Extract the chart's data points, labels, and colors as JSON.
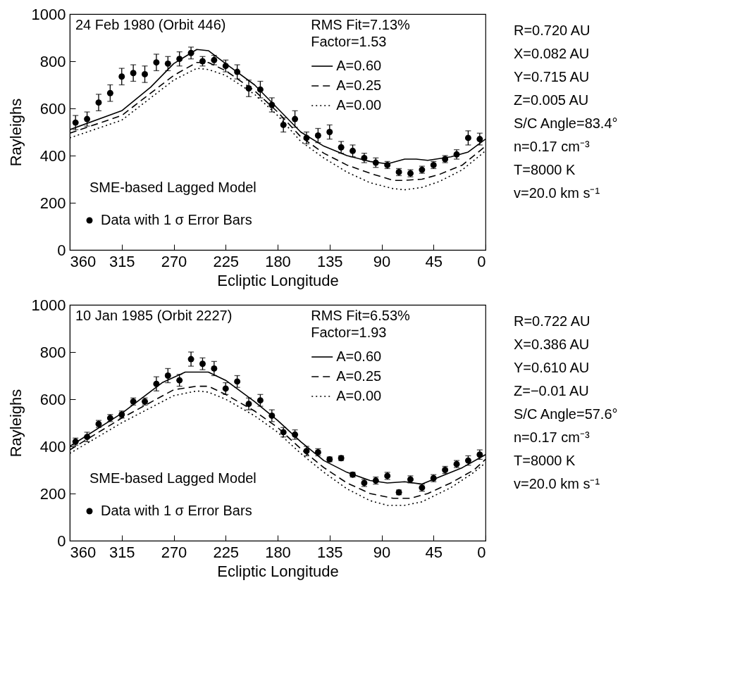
{
  "chart_data": [
    {
      "type": "line",
      "xlabel": "Ecliptic Longitude",
      "ylabel": "Rayleighs",
      "xlim": [
        360,
        0
      ],
      "xticks": [
        360,
        315,
        270,
        225,
        180,
        135,
        90,
        45,
        0
      ],
      "ylim": [
        0,
        1000
      ],
      "yticks": [
        0,
        200,
        400,
        600,
        800,
        1000
      ],
      "grid": false,
      "legend": "left",
      "annotations": [
        "24 Feb 1980 (Orbit 446)",
        "RMS Fit=7.13%",
        "Factor=1.53",
        "SME-based Lagged Model",
        "R=0.720 AU",
        "X=0.082 AU",
        "Y=0.715 AU",
        "Z=0.005 AU",
        "S/C Angle=83.4°",
        "n=0.17 cm⁻³",
        "T=8000 K",
        "v=20.0 km s⁻¹"
      ],
      "series": [
        {
          "name": "A=0.60",
          "type": "line",
          "line_style": "solid",
          "color": "#000000",
          "x": [
            360,
            315,
            290,
            270,
            250,
            240,
            225,
            200,
            180,
            160,
            140,
            120,
            100,
            85,
            70,
            60,
            50,
            30,
            15,
            0
          ],
          "values": [
            510,
            590,
            690,
            790,
            850,
            845,
            790,
            700,
            600,
            500,
            440,
            400,
            375,
            365,
            385,
            385,
            380,
            395,
            415,
            470
          ]
        },
        {
          "name": "A=0.25",
          "type": "line",
          "line_style": "dashed",
          "color": "#000000",
          "x": [
            360,
            315,
            270,
            250,
            240,
            225,
            200,
            180,
            160,
            140,
            120,
            100,
            80,
            70,
            55,
            40,
            20,
            0
          ],
          "values": [
            495,
            570,
            740,
            795,
            795,
            760,
            675,
            585,
            480,
            410,
            360,
            325,
            295,
            295,
            300,
            320,
            360,
            440
          ]
        },
        {
          "name": "A=0.00",
          "type": "line",
          "line_style": "dotted",
          "color": "#000000",
          "x": [
            360,
            315,
            270,
            250,
            240,
            225,
            200,
            180,
            160,
            140,
            120,
            100,
            80,
            70,
            55,
            40,
            20,
            0
          ],
          "values": [
            475,
            550,
            720,
            770,
            765,
            740,
            660,
            570,
            460,
            390,
            330,
            285,
            260,
            255,
            265,
            290,
            340,
            420
          ]
        },
        {
          "name": "Data with 1 σ Error Bars",
          "type": "scatter",
          "marker": "circle",
          "color": "#000000",
          "x": [
            355,
            345,
            335,
            325,
            315,
            305,
            295,
            285,
            275,
            265,
            255,
            245,
            235,
            225,
            215,
            205,
            195,
            185,
            175,
            165,
            155,
            145,
            135,
            125,
            115,
            105,
            95,
            85,
            75,
            65,
            55,
            45,
            35,
            25,
            15,
            5
          ],
          "values": [
            540,
            555,
            625,
            665,
            735,
            750,
            745,
            795,
            790,
            810,
            835,
            800,
            805,
            780,
            755,
            685,
            680,
            615,
            530,
            555,
            475,
            485,
            500,
            435,
            420,
            390,
            370,
            360,
            330,
            325,
            340,
            360,
            385,
            405,
            475,
            470
          ],
          "errors": [
            30,
            30,
            35,
            35,
            35,
            35,
            35,
            35,
            30,
            30,
            25,
            20,
            20,
            25,
            30,
            35,
            35,
            30,
            30,
            35,
            25,
            30,
            30,
            25,
            25,
            20,
            20,
            15,
            15,
            15,
            15,
            15,
            15,
            20,
            30,
            25
          ]
        }
      ]
    },
    {
      "type": "line",
      "xlabel": "Ecliptic Longitude",
      "ylabel": "Rayleighs",
      "xlim": [
        360,
        0
      ],
      "xticks": [
        360,
        315,
        270,
        225,
        180,
        135,
        90,
        45,
        0
      ],
      "ylim": [
        0,
        1000
      ],
      "yticks": [
        0,
        200,
        400,
        600,
        800,
        1000
      ],
      "grid": false,
      "legend": "left",
      "annotations": [
        "10 Jan 1985 (Orbit 2227)",
        "RMS Fit=6.53%",
        "Factor=1.93",
        "SME-based Lagged Model",
        "R=0.722 AU",
        "X=0.386 AU",
        "Y=0.610 AU",
        "Z=−0.01 AU",
        "S/C Angle=57.6°",
        "n=0.17 cm⁻³",
        "T=8000 K",
        "v=20.0 km s⁻¹"
      ],
      "series": [
        {
          "name": "A=0.60",
          "type": "line",
          "line_style": "solid",
          "color": "#000000",
          "x": [
            360,
            315,
            280,
            260,
            240,
            225,
            200,
            180,
            160,
            140,
            120,
            100,
            85,
            70,
            55,
            40,
            20,
            0
          ],
          "values": [
            400,
            540,
            670,
            715,
            715,
            680,
            590,
            510,
            420,
            340,
            290,
            255,
            245,
            250,
            240,
            270,
            310,
            365
          ]
        },
        {
          "name": "A=0.25",
          "type": "line",
          "line_style": "dashed",
          "color": "#000000",
          "x": [
            360,
            315,
            270,
            250,
            240,
            225,
            200,
            180,
            160,
            140,
            120,
            100,
            80,
            65,
            50,
            30,
            10,
            0
          ],
          "values": [
            385,
            520,
            640,
            655,
            655,
            620,
            550,
            480,
            390,
            310,
            245,
            200,
            180,
            180,
            200,
            245,
            300,
            345
          ]
        },
        {
          "name": "A=0.00",
          "type": "line",
          "line_style": "dotted",
          "color": "#000000",
          "x": [
            360,
            315,
            270,
            250,
            240,
            225,
            200,
            180,
            160,
            140,
            120,
            100,
            85,
            70,
            55,
            30,
            10,
            0
          ],
          "values": [
            370,
            500,
            615,
            635,
            630,
            600,
            530,
            460,
            370,
            290,
            220,
            170,
            150,
            150,
            165,
            225,
            290,
            330
          ]
        },
        {
          "name": "Data with 1 σ Error Bars",
          "type": "scatter",
          "marker": "circle",
          "color": "#000000",
          "x": [
            355,
            345,
            335,
            325,
            315,
            305,
            295,
            285,
            275,
            265,
            255,
            245,
            235,
            225,
            215,
            205,
            195,
            185,
            175,
            165,
            155,
            145,
            135,
            125,
            115,
            105,
            95,
            85,
            75,
            65,
            55,
            45,
            35,
            25,
            15,
            5
          ],
          "values": [
            420,
            440,
            495,
            520,
            535,
            590,
            590,
            665,
            700,
            680,
            770,
            750,
            730,
            645,
            675,
            580,
            595,
            530,
            460,
            450,
            380,
            375,
            345,
            350,
            280,
            245,
            255,
            275,
            205,
            260,
            225,
            265,
            300,
            325,
            340,
            365
          ],
          "errors": [
            15,
            20,
            15,
            15,
            15,
            15,
            15,
            30,
            30,
            25,
            30,
            25,
            30,
            25,
            25,
            25,
            25,
            25,
            20,
            20,
            20,
            15,
            10,
            10,
            10,
            15,
            15,
            15,
            10,
            15,
            15,
            15,
            15,
            15,
            20,
            20
          ]
        }
      ]
    }
  ]
}
